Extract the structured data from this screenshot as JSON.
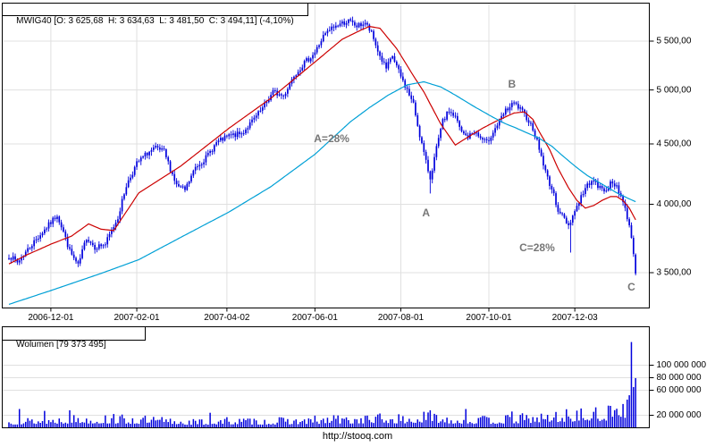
{
  "price_panel": {
    "header": "MWIG40 [O: 3 625,68  H: 3 634,63  L: 3 481,50  C: 3 494,11] (-4,10%)"
  },
  "volume_panel": {
    "header": "Wolumen [79 373 495]",
    "current_volume": 79373495
  },
  "footer": {
    "url": "http://stooq.com"
  },
  "colors": {
    "candle": "#0000dd",
    "volume_bar": "#0000dd",
    "ma_fast": "#cc0000",
    "ma_slow": "#00a0d6",
    "grid": "#e0e0e0",
    "border": "#000000",
    "annotation": "#777777",
    "background": "#ffffff",
    "text": "#000000"
  },
  "chart_data": [
    {
      "type": "candlestick",
      "symbol": "MWIG40",
      "scale": "log",
      "last_bar": {
        "open": 3625.68,
        "high": 3634.63,
        "low": 3481.5,
        "close": 3494.11,
        "change_pct": -4.1
      },
      "n_bars": 300,
      "y_ticks": [
        {
          "value": 5500,
          "label": "5 500,00"
        },
        {
          "value": 5000,
          "label": "5 000,00"
        },
        {
          "value": 4500,
          "label": "4 500,00"
        },
        {
          "value": 4000,
          "label": "4 000,00"
        },
        {
          "value": 3500,
          "label": "3 500,00"
        }
      ],
      "x_ticks": [
        [
          20,
          "2006-12-01"
        ],
        [
          61,
          "2007-02-01"
        ],
        [
          104,
          "2007-04-02"
        ],
        [
          146,
          "2007-06-01"
        ],
        [
          187,
          "2007-08-01"
        ],
        [
          229,
          "2007-10-01"
        ],
        [
          270,
          "2007-12-03"
        ]
      ],
      "close_anchors": [
        [
          0,
          3620
        ],
        [
          4,
          3570
        ],
        [
          11,
          3700
        ],
        [
          20,
          3860
        ],
        [
          23,
          3920
        ],
        [
          26,
          3790
        ],
        [
          29,
          3650
        ],
        [
          33,
          3545
        ],
        [
          37,
          3750
        ],
        [
          41,
          3680
        ],
        [
          46,
          3700
        ],
        [
          52,
          3900
        ],
        [
          56,
          4150
        ],
        [
          61,
          4330
        ],
        [
          66,
          4420
        ],
        [
          70,
          4460
        ],
        [
          74,
          4430
        ],
        [
          80,
          4150
        ],
        [
          84,
          4110
        ],
        [
          89,
          4300
        ],
        [
          94,
          4380
        ],
        [
          99,
          4510
        ],
        [
          105,
          4570
        ],
        [
          111,
          4590
        ],
        [
          116,
          4700
        ],
        [
          121,
          4820
        ],
        [
          126,
          4980
        ],
        [
          131,
          4940
        ],
        [
          136,
          5150
        ],
        [
          141,
          5270
        ],
        [
          146,
          5380
        ],
        [
          150,
          5550
        ],
        [
          154,
          5640
        ],
        [
          158,
          5690
        ],
        [
          162,
          5720
        ],
        [
          166,
          5660
        ],
        [
          170,
          5700
        ],
        [
          173,
          5580
        ],
        [
          177,
          5340
        ],
        [
          180,
          5210
        ],
        [
          183,
          5340
        ],
        [
          187,
          5130
        ],
        [
          190,
          5000
        ],
        [
          193,
          4860
        ],
        [
          196,
          4580
        ],
        [
          199,
          4340
        ],
        [
          201,
          4210
        ],
        [
          204,
          4460
        ],
        [
          207,
          4700
        ],
        [
          210,
          4800
        ],
        [
          213,
          4740
        ],
        [
          216,
          4600
        ],
        [
          219,
          4560
        ],
        [
          222,
          4610
        ],
        [
          225,
          4550
        ],
        [
          228,
          4510
        ],
        [
          231,
          4610
        ],
        [
          234,
          4700
        ],
        [
          237,
          4800
        ],
        [
          241,
          4870
        ],
        [
          244,
          4810
        ],
        [
          247,
          4740
        ],
        [
          250,
          4640
        ],
        [
          253,
          4460
        ],
        [
          256,
          4260
        ],
        [
          259,
          4120
        ],
        [
          262,
          3960
        ],
        [
          267,
          3840
        ],
        [
          270,
          3950
        ],
        [
          273,
          4060
        ],
        [
          276,
          4150
        ],
        [
          278,
          4200
        ],
        [
          281,
          4140
        ],
        [
          284,
          4110
        ],
        [
          287,
          4160
        ],
        [
          290,
          4150
        ],
        [
          293,
          4020
        ],
        [
          295,
          3900
        ],
        [
          297,
          3760
        ],
        [
          298,
          3640
        ],
        [
          299,
          3494.11
        ]
      ],
      "special_bars": [
        {
          "i": 162,
          "high": 5730
        },
        {
          "i": 201,
          "low": 4085
        },
        {
          "i": 268,
          "low": 3640
        },
        {
          "i": 299,
          "open": 3625.68,
          "high": 3634.63,
          "low": 3481.5,
          "close": 3494.11
        }
      ],
      "series": [
        {
          "name": "ma-fast",
          "color_key": "ma_fast",
          "anchors": [
            [
              0,
              3560
            ],
            [
              8,
              3620
            ],
            [
              20,
              3700
            ],
            [
              30,
              3760
            ],
            [
              38,
              3850
            ],
            [
              44,
              3810
            ],
            [
              50,
              3800
            ],
            [
              62,
              4090
            ],
            [
              82,
              4310
            ],
            [
              105,
              4640
            ],
            [
              125,
              4920
            ],
            [
              146,
              5280
            ],
            [
              159,
              5520
            ],
            [
              168,
              5620
            ],
            [
              172,
              5660
            ],
            [
              177,
              5640
            ],
            [
              185,
              5420
            ],
            [
              193,
              5140
            ],
            [
              198,
              4980
            ],
            [
              206,
              4680
            ],
            [
              213,
              4490
            ],
            [
              219,
              4560
            ],
            [
              226,
              4640
            ],
            [
              232,
              4700
            ],
            [
              241,
              4780
            ],
            [
              246,
              4790
            ],
            [
              250,
              4720
            ],
            [
              253,
              4610
            ],
            [
              258,
              4450
            ],
            [
              262,
              4290
            ],
            [
              267,
              4130
            ],
            [
              271,
              4030
            ],
            [
              275,
              3970
            ],
            [
              279,
              3990
            ],
            [
              283,
              4030
            ],
            [
              287,
              4060
            ],
            [
              290,
              4060
            ],
            [
              293,
              4030
            ],
            [
              296,
              3970
            ],
            [
              299,
              3880
            ]
          ]
        },
        {
          "name": "ma-slow",
          "color_key": "ma_slow",
          "anchors": [
            [
              0,
              3290
            ],
            [
              20,
              3380
            ],
            [
              43,
              3490
            ],
            [
              62,
              3590
            ],
            [
              82,
              3750
            ],
            [
              105,
              3940
            ],
            [
              125,
              4140
            ],
            [
              146,
              4410
            ],
            [
              163,
              4700
            ],
            [
              172,
              4830
            ],
            [
              181,
              4950
            ],
            [
              190,
              5050
            ],
            [
              198,
              5080
            ],
            [
              206,
              5030
            ],
            [
              213,
              4950
            ],
            [
              222,
              4840
            ],
            [
              231,
              4740
            ],
            [
              237,
              4680
            ],
            [
              241,
              4650
            ],
            [
              247,
              4600
            ],
            [
              253,
              4550
            ],
            [
              259,
              4480
            ],
            [
              264,
              4400
            ],
            [
              270,
              4310
            ],
            [
              276,
              4230
            ],
            [
              283,
              4160
            ],
            [
              290,
              4090
            ],
            [
              295,
              4050
            ],
            [
              299,
              4020
            ]
          ]
        }
      ],
      "annotations": [
        {
          "text": "A=28%",
          "i": 154,
          "price": 4540
        },
        {
          "text": "A",
          "i": 199,
          "price": 3930
        },
        {
          "text": "B",
          "i": 240,
          "price": 5050
        },
        {
          "text": "C=28%",
          "i": 252,
          "price": 3670
        },
        {
          "text": "C",
          "i": 297,
          "price": 3400
        }
      ]
    },
    {
      "type": "bar",
      "title": "Wolumen",
      "current": 79373495,
      "y_ticks": [
        {
          "value": 100000000,
          "label": "100 000 000"
        },
        {
          "value": 80000000,
          "label": "80 000 000"
        },
        {
          "value": 60000000,
          "label": "60 000 000"
        },
        {
          "value": 20000000,
          "label": "20 000 000"
        }
      ],
      "base_anchors_millions": [
        [
          0,
          10
        ],
        [
          15,
          12
        ],
        [
          33,
          14
        ],
        [
          52,
          13
        ],
        [
          70,
          12
        ],
        [
          90,
          9
        ],
        [
          105,
          11
        ],
        [
          125,
          10
        ],
        [
          146,
          12
        ],
        [
          162,
          13
        ],
        [
          177,
          15
        ],
        [
          190,
          13
        ],
        [
          201,
          17
        ],
        [
          213,
          13
        ],
        [
          228,
          12
        ],
        [
          241,
          14
        ],
        [
          253,
          16
        ],
        [
          262,
          18
        ],
        [
          270,
          20
        ],
        [
          281,
          20
        ],
        [
          287,
          24
        ],
        [
          291,
          26
        ],
        [
          295,
          32
        ],
        [
          299,
          60
        ]
      ],
      "spikes_millions": [
        [
          5,
          30
        ],
        [
          17,
          27
        ],
        [
          29,
          28
        ],
        [
          50,
          22
        ],
        [
          96,
          24
        ],
        [
          155,
          20
        ],
        [
          201,
          28
        ],
        [
          218,
          30
        ],
        [
          240,
          26
        ],
        [
          287,
          35
        ],
        [
          293,
          38
        ],
        [
          295,
          45
        ],
        [
          296,
          52
        ],
        [
          297,
          137
        ],
        [
          298,
          65
        ],
        [
          299,
          79.373495
        ]
      ]
    }
  ]
}
